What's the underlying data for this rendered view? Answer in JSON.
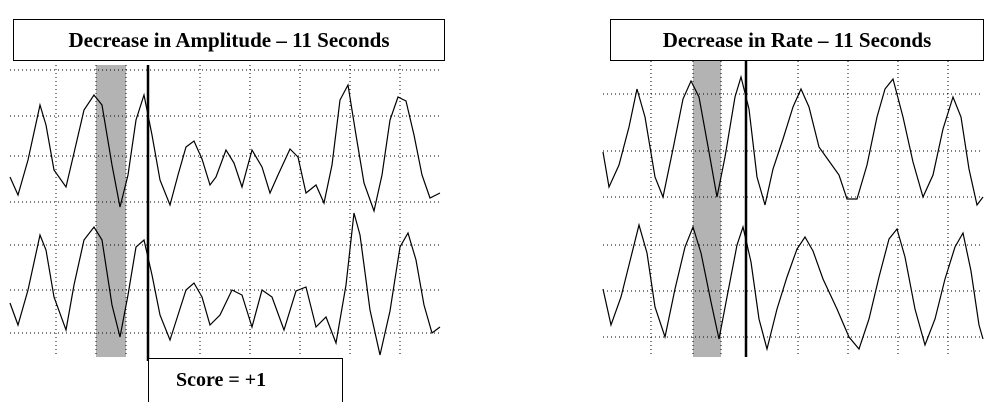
{
  "left_panel": {
    "title": "Decrease in Amplitude – 11 Seconds",
    "score_label": "Score = +1"
  },
  "right_panel": {
    "title": "Decrease in Rate – 11 Seconds"
  },
  "colors": {
    "trace": "#000000",
    "grid": "#000000",
    "shaded_band": "#b3b3b3",
    "marker_line": "#000000",
    "box_border": "#000000"
  }
}
